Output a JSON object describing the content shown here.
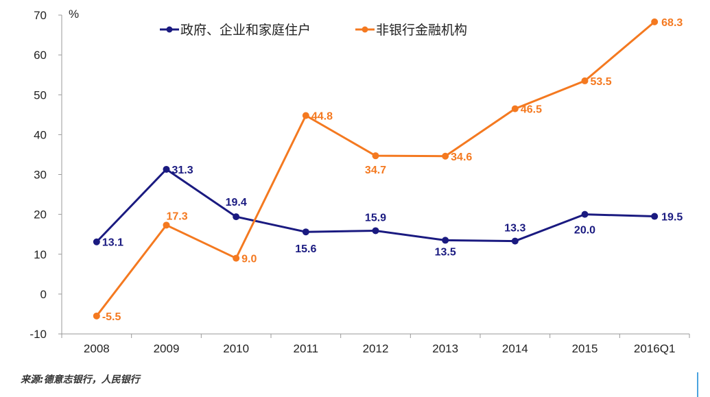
{
  "chart_data": {
    "type": "line",
    "categories": [
      "2008",
      "2009",
      "2010",
      "2011",
      "2012",
      "2013",
      "2014",
      "2015",
      "2016Q1"
    ],
    "ylabel": "%",
    "ylim": [
      -10,
      70
    ],
    "yticks": [
      -10,
      0,
      10,
      20,
      30,
      40,
      50,
      60,
      70
    ],
    "grid": false,
    "legend_position": "top",
    "series": [
      {
        "name": "政府、企业和家庭住户",
        "color": "#1a1a80",
        "values": [
          13.1,
          31.3,
          19.4,
          15.6,
          15.9,
          13.5,
          13.3,
          20.0,
          19.5
        ],
        "labels": [
          "13.1",
          "31.3",
          "19.4",
          "15.6",
          "15.9",
          "13.5",
          "13.3",
          "20.0",
          "19.5"
        ]
      },
      {
        "name": "非银行金融机构",
        "color": "#f47920",
        "values": [
          -5.5,
          17.3,
          9.0,
          44.8,
          34.7,
          34.6,
          46.5,
          53.5,
          68.3
        ],
        "labels": [
          "-5.5",
          "17.3",
          "9.0",
          "44.8",
          "34.7",
          "34.6",
          "46.5",
          "53.5",
          "68.3"
        ]
      }
    ]
  },
  "source": "来源:德意志银行，人民银行"
}
